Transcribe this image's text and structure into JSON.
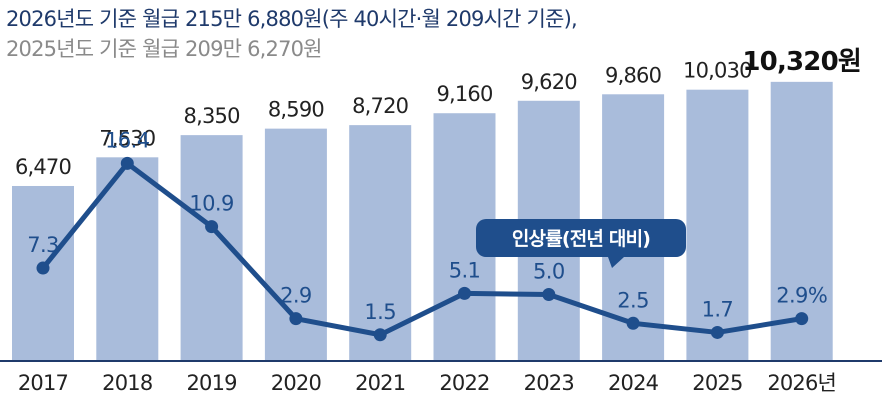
{
  "header": {
    "line1": "2026년도 기준 월급 215만 6,880원(주 40시간·월 209시간 기준),",
    "line2": "2025년도 기준 월급 209만 6,270원"
  },
  "legend_label": "인상률(전년 대비)",
  "colors": {
    "bar": "#a9bcdb",
    "line": "#1f4e8c",
    "header_primary": "#1f3a6b",
    "header_secondary": "#8a8a8a"
  },
  "chart_data": {
    "type": "bar",
    "categories": [
      "2017",
      "2018",
      "2019",
      "2020",
      "2021",
      "2022",
      "2023",
      "2024",
      "2025",
      "2026년"
    ],
    "values": [
      6470,
      7530,
      8350,
      8590,
      8720,
      9160,
      9620,
      9860,
      10030,
      10320
    ],
    "value_labels": [
      "6,470",
      "7,530",
      "8,350",
      "8,590",
      "8,720",
      "9,160",
      "9,620",
      "9,860",
      "10,030",
      "10,320원"
    ],
    "highlight_index": 9,
    "line_series": {
      "name": "인상률(전년 대비)",
      "values": [
        7.3,
        16.4,
        10.9,
        2.9,
        1.5,
        5.1,
        5.0,
        2.5,
        1.7,
        2.9
      ],
      "labels": [
        "7.3",
        "16.4",
        "10.9",
        "2.9",
        "1.5",
        "5.1",
        "5.0",
        "2.5",
        "1.7",
        "2.9%"
      ]
    }
  }
}
